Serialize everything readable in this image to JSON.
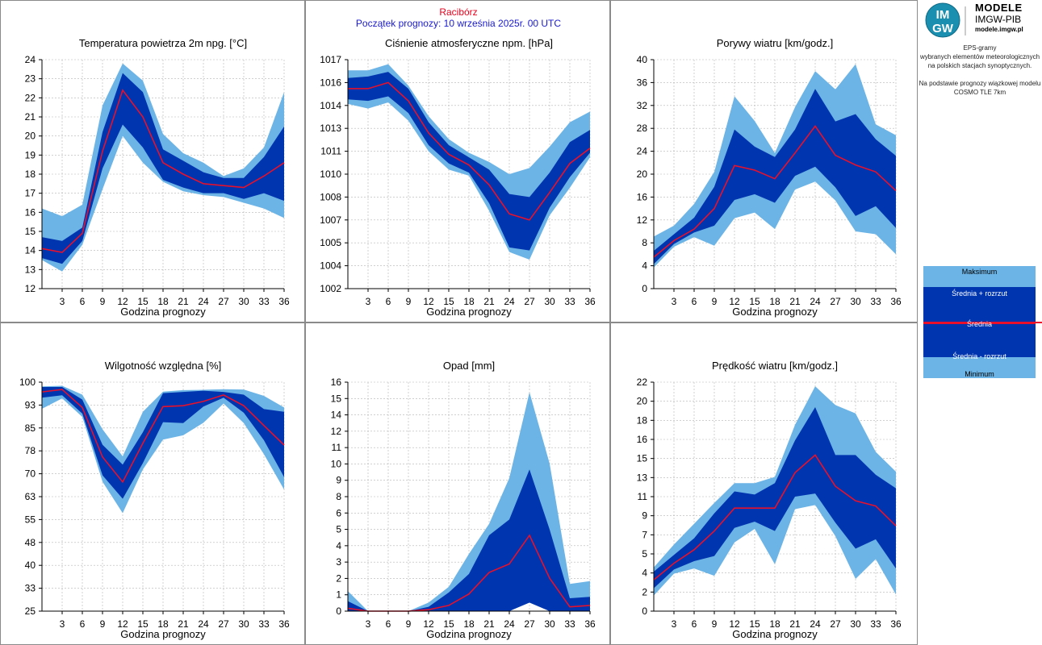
{
  "header": {
    "city": "Racibórz",
    "forecast_start": "Początek prognozy: 10 września 2025r. 00 UTC"
  },
  "logo": {
    "monogram_top": "IM",
    "monogram_bottom": "GW",
    "line1": "MODELE",
    "line2": "IMGW-PIB",
    "url": "modele.imgw.pl"
  },
  "sidebar": {
    "desc_lines": [
      "EPS-gramy",
      "wybranych elementów meteorologicznych",
      "na polskich stacjach  synoptycznych.",
      "",
      "Na podstawie prognozy wiązkowej modelu",
      "COSMO TLE 7km"
    ]
  },
  "legend": {
    "max": "Maksimum",
    "mean_plus": "Średnia + rozrzut",
    "mean": "Średnia",
    "mean_minus": "Średnia - rozrzut",
    "min": "Minimum"
  },
  "colors": {
    "outer_band": "#6cb4e6",
    "inner_band": "#0035b0",
    "mean_line": "#e8102a",
    "grid": "#b4b4b4"
  },
  "chart_data": [
    {
      "type": "area",
      "title": "Temperatura powietrza 2m npg. [°C]",
      "xlabel": "Godzina prognozy",
      "x": [
        0,
        3,
        6,
        9,
        12,
        15,
        18,
        21,
        24,
        27,
        30,
        33,
        36
      ],
      "xticks": [
        "3",
        "6",
        "9",
        "12",
        "15",
        "18",
        "21",
        "24",
        "27",
        "30",
        "33",
        "36"
      ],
      "ylim": [
        12,
        24
      ],
      "yticks": [
        "12",
        "13",
        "14",
        "15",
        "16",
        "17",
        "18",
        "19",
        "20",
        "21",
        "22",
        "23",
        "24"
      ],
      "series": [
        {
          "role": "minimum",
          "values": [
            13.5,
            12.9,
            14.3,
            17.2,
            20.0,
            18.6,
            17.6,
            17.1,
            16.9,
            16.8,
            16.5,
            16.2,
            15.7
          ]
        },
        {
          "role": "mean-minus",
          "values": [
            13.6,
            13.3,
            14.5,
            18.3,
            20.6,
            19.4,
            17.7,
            17.3,
            17.0,
            17.0,
            16.7,
            17.0,
            16.6
          ]
        },
        {
          "role": "mean",
          "values": [
            14.1,
            13.9,
            14.9,
            19.2,
            22.4,
            21.0,
            18.6,
            18.0,
            17.5,
            17.4,
            17.3,
            17.9,
            18.6
          ]
        },
        {
          "role": "mean-plus",
          "values": [
            14.7,
            14.5,
            15.2,
            20.2,
            23.3,
            22.3,
            19.3,
            18.7,
            18.1,
            17.8,
            17.8,
            18.9,
            20.5
          ]
        },
        {
          "role": "maximum",
          "values": [
            16.2,
            15.8,
            16.4,
            21.6,
            23.8,
            22.9,
            20.1,
            19.1,
            18.6,
            17.9,
            18.3,
            19.4,
            22.3
          ]
        }
      ]
    },
    {
      "type": "area",
      "title": "Ciśnienie atmosferyczne npm. [hPa]",
      "xlabel": "Godzina prognozy",
      "x": [
        0,
        3,
        6,
        9,
        12,
        15,
        18,
        21,
        24,
        27,
        30,
        33,
        36
      ],
      "xticks": [
        "3",
        "6",
        "9",
        "12",
        "15",
        "18",
        "21",
        "24",
        "27",
        "30",
        "33",
        "36"
      ],
      "ylim": [
        1002,
        1017
      ],
      "yticks": [
        "1002",
        "1004",
        "1005",
        "1007",
        "1008",
        "1010",
        "1011",
        "1013",
        "1014",
        "1016",
        "1017"
      ],
      "series": [
        {
          "role": "minimum",
          "values": [
            1014.1,
            1013.8,
            1014.2,
            1013.0,
            1011.0,
            1009.8,
            1009.4,
            1007.1,
            1004.4,
            1003.9,
            1006.8,
            1008.6,
            1010.6
          ]
        },
        {
          "role": "mean-minus",
          "values": [
            1014.4,
            1014.3,
            1014.6,
            1013.5,
            1011.4,
            1010.2,
            1009.6,
            1007.6,
            1004.7,
            1004.5,
            1007.3,
            1009.3,
            1010.9
          ]
        },
        {
          "role": "mean",
          "values": [
            1015.1,
            1015.1,
            1015.5,
            1014.3,
            1012.2,
            1010.8,
            1010.1,
            1008.8,
            1006.9,
            1006.5,
            1008.3,
            1010.2,
            1011.2
          ]
        },
        {
          "role": "mean-plus",
          "values": [
            1015.8,
            1015.9,
            1016.2,
            1015.1,
            1012.9,
            1011.4,
            1010.6,
            1009.8,
            1008.2,
            1008.0,
            1009.6,
            1011.6,
            1012.4
          ]
        },
        {
          "role": "maximum",
          "values": [
            1016.3,
            1016.3,
            1016.7,
            1015.3,
            1013.3,
            1011.8,
            1010.9,
            1010.3,
            1009.5,
            1009.9,
            1011.3,
            1012.9,
            1013.6
          ]
        }
      ]
    },
    {
      "type": "area",
      "title": "Porywy wiatru [km/godz.]",
      "xlabel": "Godzina prognozy",
      "x": [
        0,
        3,
        6,
        9,
        12,
        15,
        18,
        21,
        24,
        27,
        30,
        33,
        36
      ],
      "xticks": [
        "3",
        "6",
        "9",
        "12",
        "15",
        "18",
        "21",
        "24",
        "27",
        "30",
        "33",
        "36"
      ],
      "ylim": [
        0,
        40
      ],
      "yticks": [
        "0",
        "4",
        "8",
        "12",
        "16",
        "20",
        "24",
        "28",
        "32",
        "36",
        "40"
      ],
      "series": [
        {
          "role": "minimum",
          "values": [
            3.7,
            7.3,
            9.0,
            7.5,
            12.3,
            13.3,
            10.4,
            17.3,
            18.7,
            15.4,
            10.0,
            9.5,
            6.0
          ]
        },
        {
          "role": "mean-minus",
          "values": [
            4.3,
            7.8,
            9.8,
            11.0,
            15.5,
            16.5,
            15.0,
            19.7,
            21.3,
            17.7,
            12.7,
            14.4,
            10.6
          ]
        },
        {
          "role": "mean",
          "values": [
            5.5,
            8.4,
            10.4,
            14.0,
            21.5,
            20.7,
            19.2,
            23.7,
            28.4,
            23.3,
            21.6,
            20.4,
            17.1
          ]
        },
        {
          "role": "mean-plus",
          "values": [
            6.6,
            9.5,
            12.4,
            17.8,
            27.8,
            24.8,
            23.0,
            27.8,
            34.9,
            29.2,
            30.5,
            26.1,
            23.2
          ]
        },
        {
          "role": "maximum",
          "values": [
            9.1,
            11.0,
            14.8,
            20.4,
            33.6,
            29.3,
            23.7,
            31.7,
            38.0,
            34.8,
            39.2,
            28.7,
            26.8
          ]
        }
      ]
    },
    {
      "type": "area",
      "title": "Wilgotność względna [%]",
      "xlabel": "Godzina prognozy",
      "x": [
        0,
        3,
        6,
        9,
        12,
        15,
        18,
        21,
        24,
        27,
        30,
        33,
        36
      ],
      "xticks": [
        "3",
        "6",
        "9",
        "12",
        "15",
        "18",
        "21",
        "24",
        "27",
        "30",
        "33",
        "36"
      ],
      "ylim": [
        25,
        100
      ],
      "yticks": [
        "25",
        "33",
        "40",
        "48",
        "55",
        "63",
        "70",
        "78",
        "85",
        "93",
        "100"
      ],
      "series": [
        {
          "role": "minimum",
          "values": [
            91.3,
            94.7,
            88.6,
            67.4,
            57.1,
            71.4,
            81.2,
            82.6,
            86.7,
            93.0,
            86.6,
            76.4,
            64.8
          ]
        },
        {
          "role": "mean-minus",
          "values": [
            94.9,
            95.7,
            89.7,
            69.5,
            61.8,
            73.5,
            86.9,
            86.6,
            92.0,
            94.9,
            90.0,
            81.0,
            68.9
          ]
        },
        {
          "role": "mean",
          "values": [
            96.8,
            97.6,
            91.7,
            75.5,
            67.3,
            80.0,
            92.0,
            92.3,
            93.7,
            95.8,
            92.3,
            85.8,
            79.4
          ]
        },
        {
          "role": "mean-plus",
          "values": [
            98.4,
            98.4,
            94.3,
            79.5,
            73.0,
            83.6,
            96.4,
            96.8,
            97.2,
            96.8,
            95.9,
            91.2,
            90.3
          ]
        },
        {
          "role": "maximum",
          "values": [
            98.6,
            98.8,
            95.9,
            84.6,
            75.7,
            90.3,
            96.9,
            97.4,
            97.5,
            97.7,
            97.6,
            95.5,
            91.7
          ]
        }
      ]
    },
    {
      "type": "area",
      "title": "Opad [mm]",
      "xlabel": "Godzina prognozy",
      "x": [
        0,
        3,
        6,
        9,
        12,
        15,
        18,
        21,
        24,
        27,
        30,
        33,
        36
      ],
      "xticks": [
        "3",
        "6",
        "9",
        "12",
        "15",
        "18",
        "21",
        "24",
        "27",
        "30",
        "33",
        "36"
      ],
      "ylim": [
        0,
        16
      ],
      "yticks": [
        "0",
        "1",
        "2",
        "3",
        "4",
        "5",
        "6",
        "8",
        "9",
        "10",
        "11",
        "12",
        "14",
        "15",
        "16"
      ],
      "series": [
        {
          "role": "minimum",
          "values": [
            0.0,
            0.0,
            0.0,
            0.0,
            0.0,
            0.0,
            0.0,
            0.0,
            0.0,
            0.6,
            0.0,
            0.0,
            0.0
          ]
        },
        {
          "role": "mean-minus",
          "values": [
            0.0,
            0.0,
            0.0,
            0.0,
            0.0,
            0.0,
            0.0,
            0.0,
            0.0,
            0.6,
            0.0,
            0.0,
            0.0
          ]
        },
        {
          "role": "mean",
          "values": [
            0.2,
            0.0,
            0.0,
            0.0,
            0.1,
            0.4,
            1.2,
            2.7,
            3.3,
            5.3,
            2.3,
            0.3,
            0.4
          ]
        },
        {
          "role": "mean-plus",
          "values": [
            0.7,
            0.0,
            0.0,
            0.0,
            0.3,
            1.3,
            2.6,
            5.3,
            6.4,
            9.9,
            5.7,
            0.9,
            1.0
          ]
        },
        {
          "role": "maximum",
          "values": [
            1.4,
            0.0,
            0.0,
            0.0,
            0.6,
            1.7,
            4.0,
            6.1,
            9.3,
            15.3,
            10.3,
            1.9,
            2.1
          ]
        }
      ]
    },
    {
      "type": "area",
      "title": "Prędkość wiatru [km/godz.]",
      "xlabel": "Godzina prognozy",
      "x": [
        0,
        3,
        6,
        9,
        12,
        15,
        18,
        21,
        24,
        27,
        30,
        33,
        36
      ],
      "xticks": [
        "3",
        "6",
        "9",
        "12",
        "15",
        "18",
        "21",
        "24",
        "27",
        "30",
        "33",
        "36"
      ],
      "ylim": [
        0,
        22
      ],
      "yticks": [
        "0",
        "2",
        "4",
        "5",
        "7",
        "9",
        "11",
        "13",
        "15",
        "16",
        "18",
        "20",
        "22"
      ],
      "series": [
        {
          "role": "minimum",
          "values": [
            1.5,
            3.6,
            4.1,
            3.4,
            6.6,
            7.9,
            4.5,
            9.8,
            10.2,
            7.2,
            3.1,
            5.0,
            1.6
          ]
        },
        {
          "role": "mean-minus",
          "values": [
            2.2,
            4.0,
            4.8,
            5.3,
            8.0,
            8.6,
            7.7,
            11.0,
            11.3,
            8.5,
            6.0,
            6.9,
            4.1
          ]
        },
        {
          "role": "mean",
          "values": [
            3.0,
            4.6,
            5.9,
            7.7,
            9.9,
            9.9,
            9.9,
            13.3,
            15.0,
            12.0,
            10.6,
            10.1,
            8.2
          ]
        },
        {
          "role": "mean-plus",
          "values": [
            3.8,
            5.4,
            7.0,
            9.4,
            11.5,
            11.2,
            12.3,
            16.4,
            19.6,
            15.0,
            15.0,
            13.1,
            11.8
          ]
        },
        {
          "role": "maximum",
          "values": [
            4.2,
            6.4,
            8.4,
            10.4,
            12.3,
            12.3,
            12.9,
            17.9,
            21.6,
            19.8,
            19.0,
            15.3,
            13.4
          ]
        }
      ]
    }
  ]
}
